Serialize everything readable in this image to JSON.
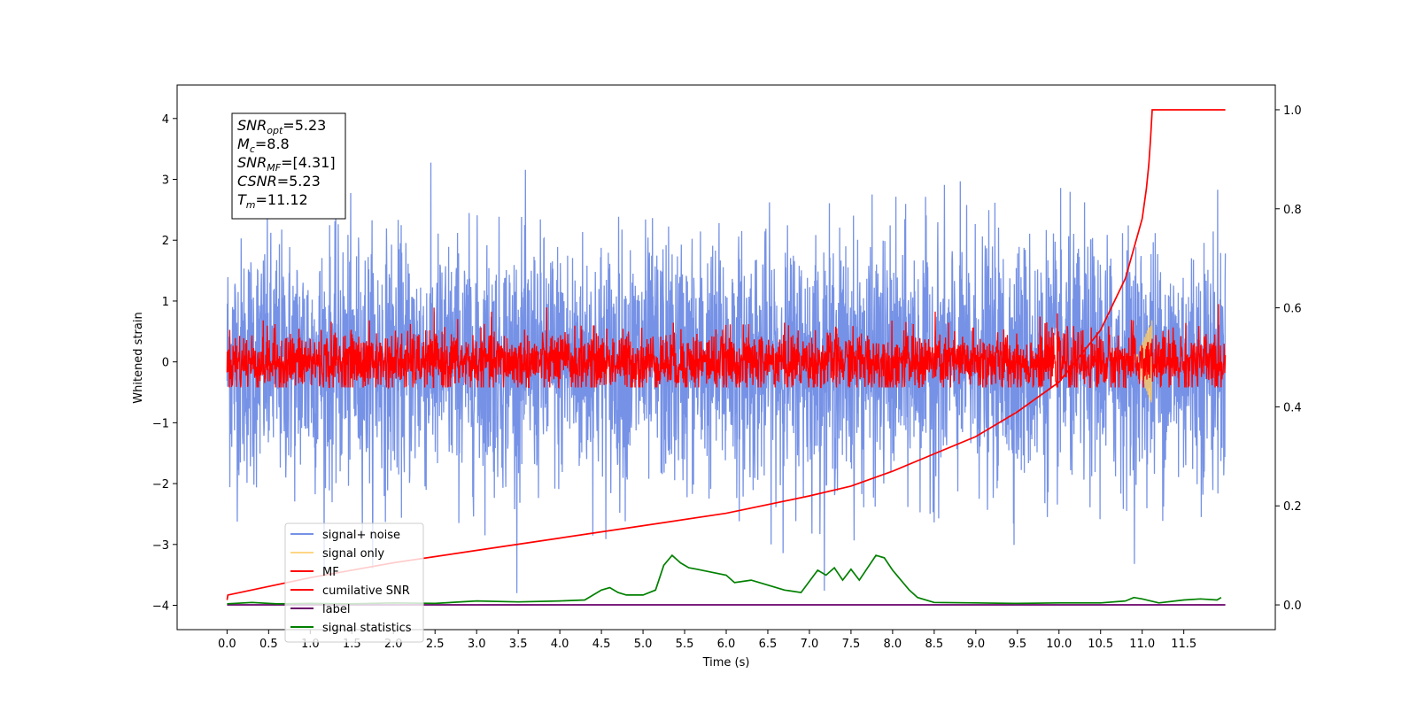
{
  "chart_data": {
    "type": "line",
    "xlabel": "Time (s)",
    "ylabel": "Whitened strain",
    "xlim": [
      -0.6,
      12.6
    ],
    "ylim": [
      -4.4,
      4.55
    ],
    "y2lim": [
      -0.05,
      1.05
    ],
    "x_ticks": [
      "0.0",
      "0.5",
      "1.0",
      "1.5",
      "2.0",
      "2.5",
      "3.0",
      "3.5",
      "4.0",
      "4.5",
      "5.0",
      "5.5",
      "6.0",
      "6.5",
      "7.0",
      "7.5",
      "8.0",
      "8.5",
      "9.0",
      "9.5",
      "10.0",
      "10.5",
      "11.0",
      "11.5"
    ],
    "y_ticks": [
      "4",
      "3",
      "2",
      "1",
      "0",
      "−1",
      "−2",
      "−3",
      "−4"
    ],
    "y2_ticks": [
      "1.0",
      "0.8",
      "0.6",
      "0.4",
      "0.2",
      "0.0"
    ],
    "grid": false,
    "legend_position": "lower-left",
    "annotation": {
      "lines": [
        {
          "sym": "SNR",
          "sub": "opt",
          "value": "=5.23"
        },
        {
          "sym": "M",
          "sub": "c",
          "value": "=8.8"
        },
        {
          "sym": "SNR",
          "sub": "MF",
          "value": "=[4.31]"
        },
        {
          "sym": "CSNR",
          "sub": "",
          "value": "=5.23"
        },
        {
          "sym": "T",
          "sub": "m",
          "value": "=11.12"
        }
      ]
    },
    "series": [
      {
        "name": "signal+ noise",
        "color": "#3c64dc",
        "opacity": 0.7,
        "axis": "left",
        "envelope": {
          "x_range": [
            0.0,
            12.0
          ],
          "sigma": 1.0,
          "peaks_max": 4.15,
          "peaks_min": -3.8
        }
      },
      {
        "name": "signal only",
        "color": "#ffcc66",
        "opacity": 0.8,
        "axis": "left",
        "chirp": {
          "x_range": [
            10.9,
            11.12
          ],
          "amp_max": 0.7
        }
      },
      {
        "name": "MF",
        "color": "#ff0000",
        "axis": "left",
        "envelope": {
          "x_range": [
            0.0,
            12.0
          ],
          "sigma": 0.25,
          "peaks_max": 0.95,
          "peaks_min": -0.42
        }
      },
      {
        "name": "cumilative SNR",
        "color": "#ff0000",
        "axis": "right",
        "x": [
          0.0,
          0.01,
          1.0,
          2.0,
          3.0,
          4.0,
          5.0,
          6.0,
          7.0,
          7.5,
          8.0,
          8.5,
          9.0,
          9.5,
          10.0,
          10.5,
          10.8,
          11.0,
          11.05,
          11.08,
          11.1,
          11.12,
          12.0
        ],
        "y": [
          0.01,
          0.02,
          0.055,
          0.085,
          0.11,
          0.135,
          0.16,
          0.185,
          0.22,
          0.24,
          0.27,
          0.305,
          0.34,
          0.39,
          0.45,
          0.555,
          0.66,
          0.78,
          0.84,
          0.89,
          0.94,
          1.0,
          1.0
        ]
      },
      {
        "name": "label",
        "color": "#6a006a",
        "axis": "right",
        "x": [
          0.0,
          12.0
        ],
        "y": [
          0.0,
          0.0
        ]
      },
      {
        "name": "signal statistics",
        "color": "#008000",
        "axis": "right",
        "x": [
          0.0,
          0.3,
          0.6,
          1.0,
          1.5,
          2.0,
          2.5,
          3.0,
          3.5,
          4.0,
          4.3,
          4.5,
          4.6,
          4.7,
          4.8,
          5.0,
          5.15,
          5.25,
          5.35,
          5.45,
          5.55,
          5.65,
          6.0,
          6.1,
          6.3,
          6.5,
          6.7,
          6.9,
          7.1,
          7.2,
          7.3,
          7.4,
          7.5,
          7.6,
          7.8,
          7.9,
          8.0,
          8.2,
          8.3,
          8.5,
          9.0,
          9.5,
          10.0,
          10.5,
          10.8,
          10.9,
          11.0,
          11.2,
          11.5,
          11.7,
          11.9,
          11.95
        ],
        "y": [
          0.002,
          0.005,
          0.002,
          0.003,
          0.002,
          0.004,
          0.003,
          0.008,
          0.006,
          0.008,
          0.01,
          0.03,
          0.035,
          0.025,
          0.02,
          0.02,
          0.03,
          0.08,
          0.1,
          0.085,
          0.075,
          0.072,
          0.06,
          0.045,
          0.05,
          0.04,
          0.03,
          0.025,
          0.07,
          0.06,
          0.075,
          0.05,
          0.072,
          0.05,
          0.1,
          0.095,
          0.07,
          0.03,
          0.015,
          0.005,
          0.004,
          0.003,
          0.004,
          0.004,
          0.008,
          0.015,
          0.012,
          0.004,
          0.01,
          0.012,
          0.01,
          0.015
        ]
      }
    ]
  }
}
